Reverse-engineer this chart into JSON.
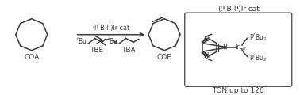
{
  "bg_color": "#ffffff",
  "line_color": "#3a3a3a",
  "box_color": "#555555",
  "fig_width": 3.78,
  "fig_height": 1.2,
  "dpi": 100,
  "reaction_arrow_label": "(P-B-P)Ir-cat",
  "coa_label": "COA",
  "coe_label": "COE",
  "tbe_label": "TBE",
  "tba_label": "TBA",
  "cat_box_title": "(P-B-P)Ir-cat",
  "ton_label": "TON up to 126"
}
